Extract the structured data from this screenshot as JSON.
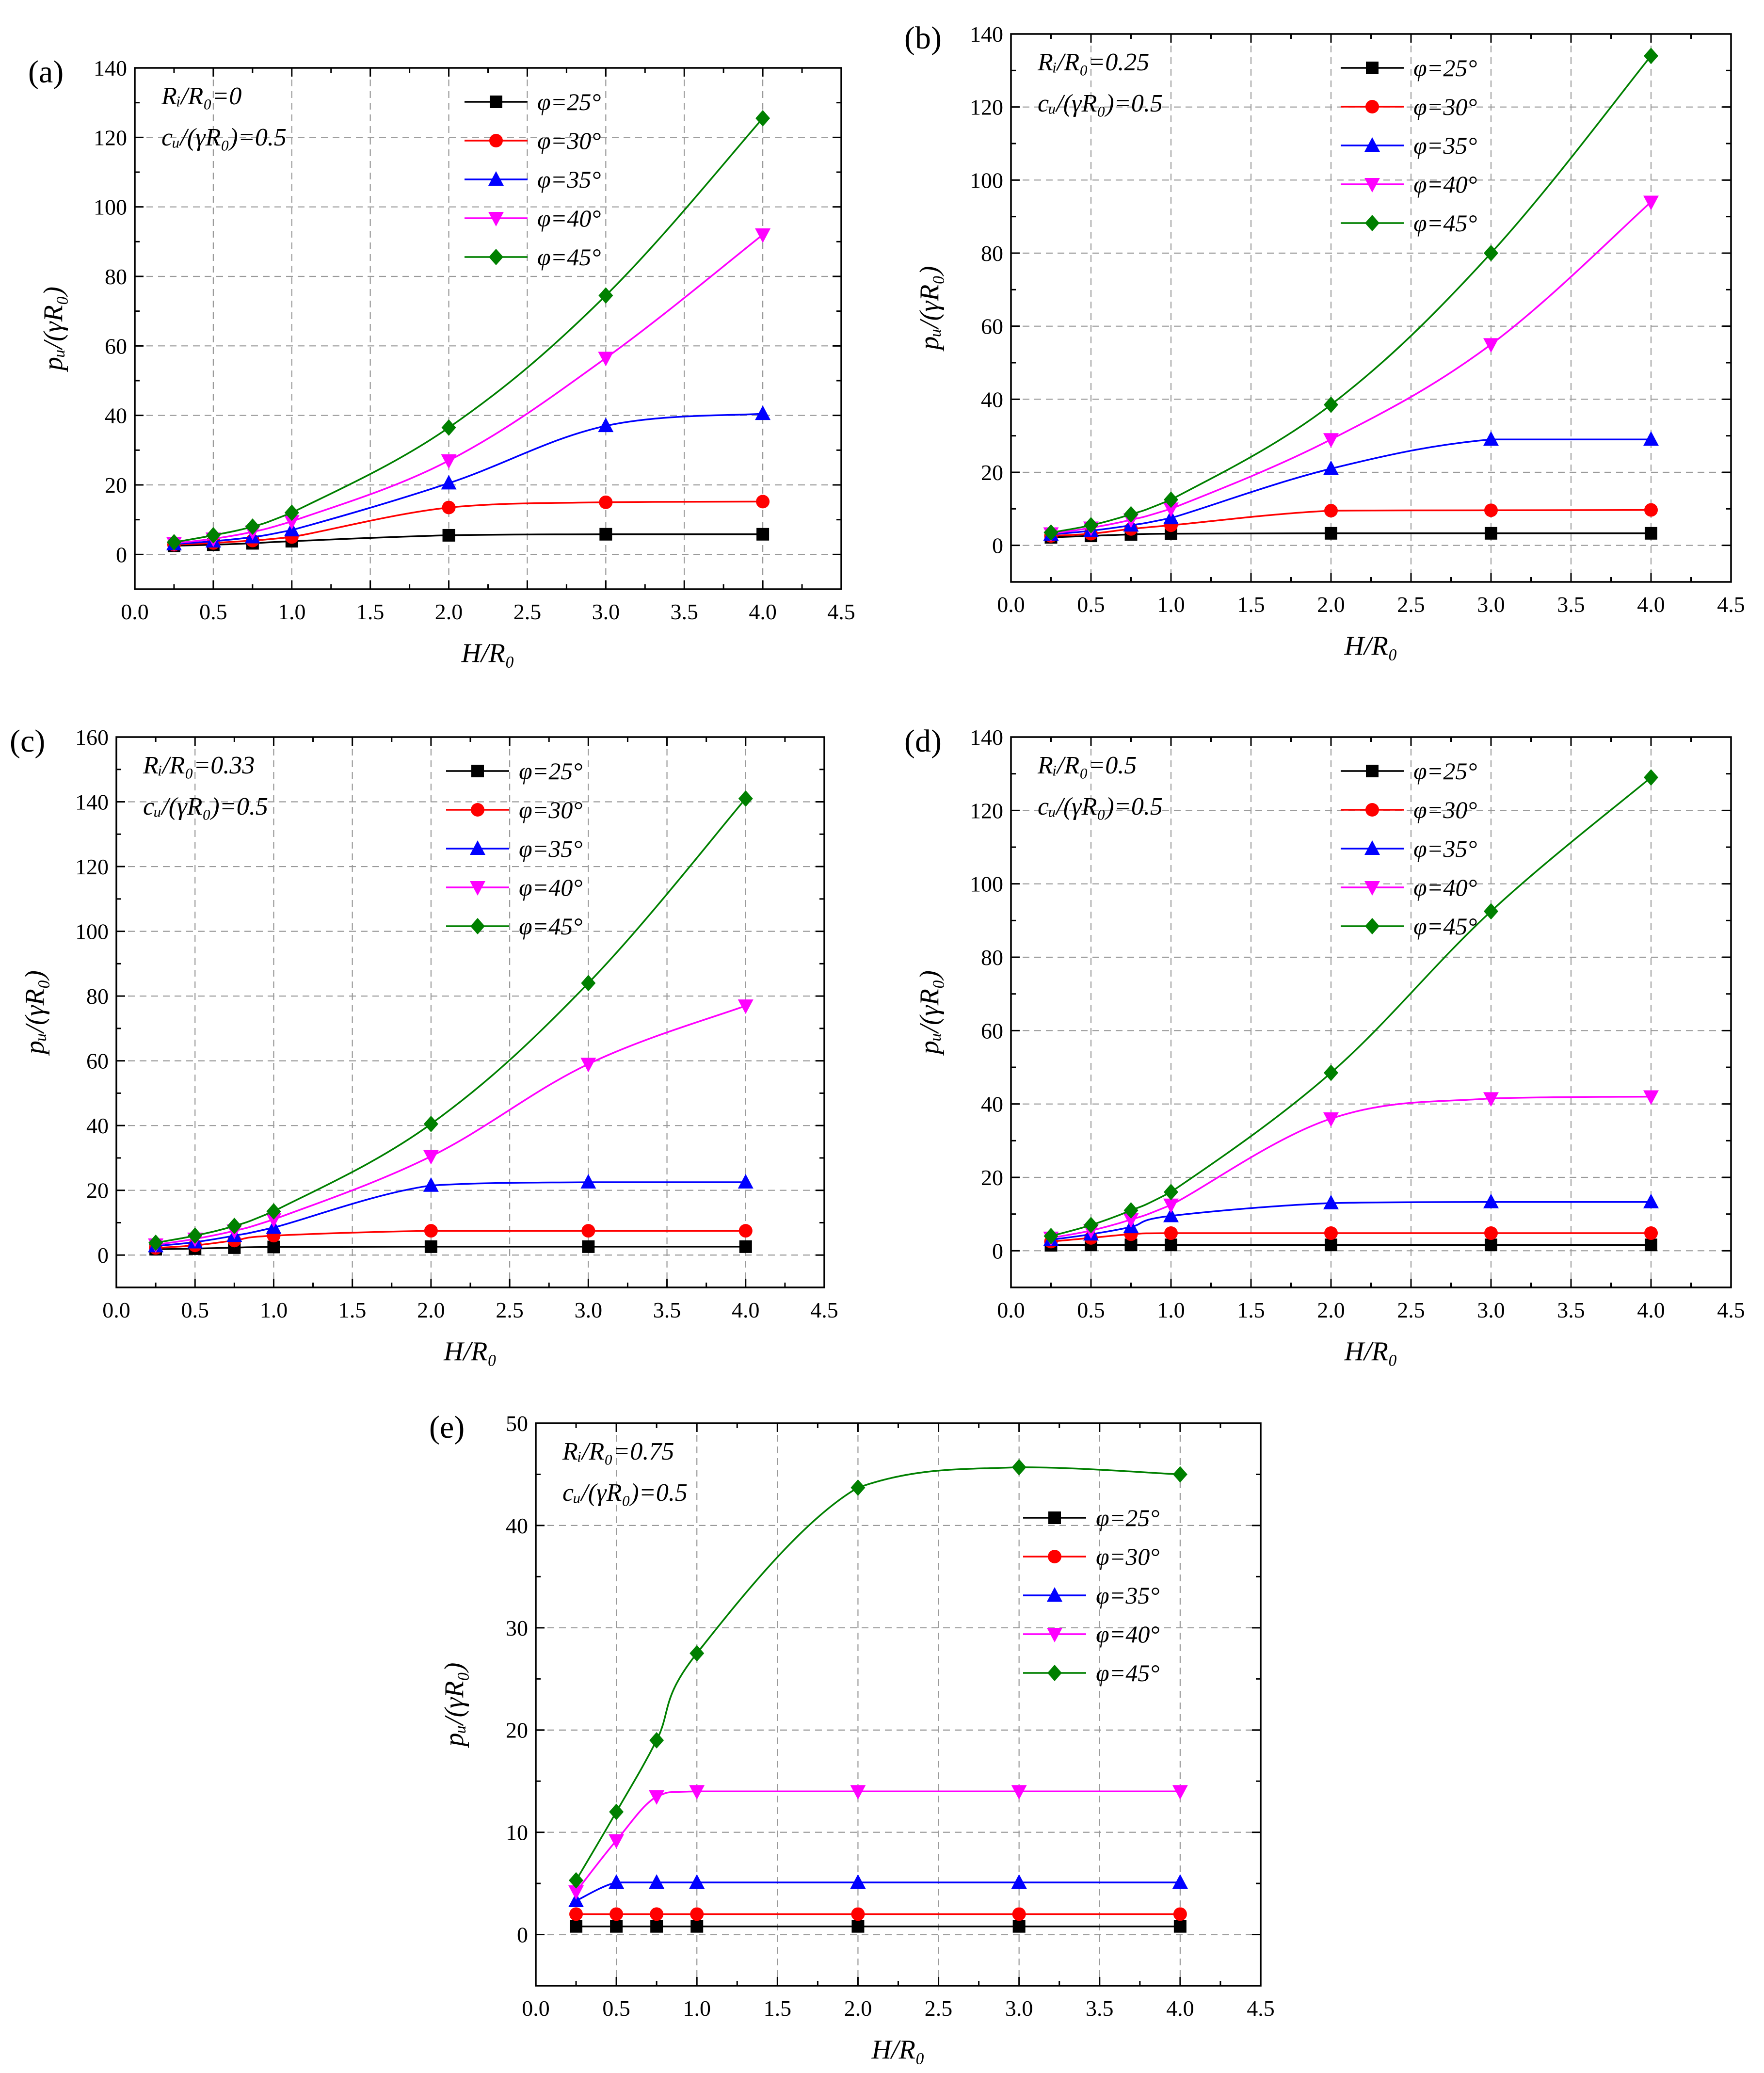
{
  "colors": {
    "phi25": "#000000",
    "phi30": "#ff0000",
    "phi35": "#0000ff",
    "phi40": "#ff00ff",
    "phi45": "#008000"
  },
  "chart_data": [
    {
      "type": "line",
      "panel_label": "(a)",
      "ann1": "Rᵢ/R₀=0",
      "ann2": "cᵤ/(γR₀)=0.5",
      "xlabel": "H/R₀",
      "ylabel": "pᵤ/(γR₀)",
      "xlim": [
        0,
        4.5
      ],
      "ylim": [
        -10,
        140
      ],
      "xticks": [
        "0.0",
        "0.5",
        "1.0",
        "1.5",
        "2.0",
        "2.5",
        "3.0",
        "3.5",
        "4.0",
        "4.5"
      ],
      "yticks": [
        "0",
        "20",
        "40",
        "60",
        "80",
        "100",
        "120",
        "140"
      ],
      "legend_position": "top-right",
      "x": [
        0.25,
        0.5,
        0.75,
        1.0,
        2.0,
        3.0,
        4.0
      ],
      "series": [
        {
          "name": "φ=25°",
          "marker": "square",
          "values": [
            2.5,
            2.8,
            3.2,
            3.8,
            5.5,
            5.8,
            5.8
          ]
        },
        {
          "name": "φ=30°",
          "marker": "circle",
          "values": [
            2.8,
            3.3,
            4.0,
            5.0,
            13.5,
            15.0,
            15.2
          ]
        },
        {
          "name": "φ=35°",
          "marker": "triangle-up",
          "values": [
            3.0,
            3.8,
            5.0,
            7.0,
            20.5,
            37.0,
            40.5
          ]
        },
        {
          "name": "φ=40°",
          "marker": "triangle-down",
          "values": [
            3.2,
            4.5,
            6.5,
            9.5,
            27.0,
            56.5,
            92.0
          ]
        },
        {
          "name": "φ=45°",
          "marker": "diamond",
          "values": [
            3.5,
            5.5,
            8.0,
            12.0,
            36.5,
            74.5,
            125.5
          ]
        }
      ]
    },
    {
      "type": "line",
      "panel_label": "(b)",
      "ann1": "Rᵢ/R₀=0.25",
      "ann2": "cᵤ/(γR₀)=0.5",
      "xlabel": "H/R₀",
      "ylabel": "pᵤ/(γR₀)",
      "xlim": [
        0,
        4.5
      ],
      "ylim": [
        -10,
        140
      ],
      "xticks": [
        "0.0",
        "0.5",
        "1.0",
        "1.5",
        "2.0",
        "2.5",
        "3.0",
        "3.5",
        "4.0",
        "4.5"
      ],
      "yticks": [
        "0",
        "20",
        "40",
        "60",
        "80",
        "100",
        "120",
        "140"
      ],
      "legend_position": "top-right",
      "x": [
        0.25,
        0.5,
        0.75,
        1.0,
        2.0,
        3.0,
        4.0
      ],
      "series": [
        {
          "name": "φ=25°",
          "marker": "square",
          "values": [
            2.2,
            2.6,
            3.0,
            3.2,
            3.3,
            3.3,
            3.3
          ]
        },
        {
          "name": "φ=30°",
          "marker": "circle",
          "values": [
            2.6,
            3.2,
            4.5,
            5.5,
            9.5,
            9.6,
            9.7
          ]
        },
        {
          "name": "φ=35°",
          "marker": "triangle-up",
          "values": [
            3.0,
            4.0,
            5.5,
            7.5,
            21.0,
            29.0,
            29.0
          ]
        },
        {
          "name": "φ=40°",
          "marker": "triangle-down",
          "values": [
            3.2,
            4.8,
            7.0,
            10.0,
            29.0,
            55.0,
            94.0
          ]
        },
        {
          "name": "φ=45°",
          "marker": "diamond",
          "values": [
            3.5,
            5.5,
            8.5,
            12.5,
            38.5,
            80.0,
            134.0
          ]
        }
      ]
    },
    {
      "type": "line",
      "panel_label": "(c)",
      "ann1": "Rᵢ/R₀=0.33",
      "ann2": "cᵤ/(γR₀)=0.5",
      "xlabel": "H/R₀",
      "ylabel": "pᵤ/(γR₀)",
      "xlim": [
        0,
        4.5
      ],
      "ylim": [
        -10,
        160
      ],
      "xticks": [
        "0.0",
        "0.5",
        "1.0",
        "1.5",
        "2.0",
        "2.5",
        "3.0",
        "3.5",
        "4.0",
        "4.5"
      ],
      "yticks": [
        "0",
        "20",
        "40",
        "60",
        "80",
        "100",
        "120",
        "140",
        "160"
      ],
      "legend_position": "top-right",
      "x": [
        0.25,
        0.5,
        0.75,
        1.0,
        2.0,
        3.0,
        4.0
      ],
      "series": [
        {
          "name": "φ=25°",
          "marker": "square",
          "values": [
            1.8,
            2.0,
            2.3,
            2.5,
            2.6,
            2.6,
            2.6
          ]
        },
        {
          "name": "φ=30°",
          "marker": "circle",
          "values": [
            2.2,
            3.0,
            4.5,
            6.0,
            7.5,
            7.5,
            7.5
          ]
        },
        {
          "name": "φ=35°",
          "marker": "triangle-up",
          "values": [
            2.8,
            4.0,
            6.0,
            8.5,
            21.5,
            22.5,
            22.5
          ]
        },
        {
          "name": "φ=40°",
          "marker": "triangle-down",
          "values": [
            3.2,
            5.0,
            7.5,
            11.0,
            30.5,
            59.0,
            77.0
          ]
        },
        {
          "name": "φ=45°",
          "marker": "diamond",
          "values": [
            3.8,
            6.0,
            9.0,
            13.5,
            40.5,
            84.0,
            141.0
          ]
        }
      ]
    },
    {
      "type": "line",
      "panel_label": "(d)",
      "ann1": "Rᵢ/R₀=0.5",
      "ann2": "cᵤ/(γR₀)=0.5",
      "xlabel": "H/R₀",
      "ylabel": "pᵤ/(γR₀)",
      "xlim": [
        0,
        4.5
      ],
      "ylim": [
        -10,
        140
      ],
      "xticks": [
        "0.0",
        "0.5",
        "1.0",
        "1.5",
        "2.0",
        "2.5",
        "3.0",
        "3.5",
        "4.0",
        "4.5"
      ],
      "yticks": [
        "0",
        "20",
        "40",
        "60",
        "80",
        "100",
        "120",
        "140"
      ],
      "legend_position": "top-right",
      "x": [
        0.25,
        0.5,
        0.75,
        1.0,
        2.0,
        3.0,
        4.0
      ],
      "series": [
        {
          "name": "φ=25°",
          "marker": "square",
          "values": [
            1.5,
            1.6,
            1.6,
            1.6,
            1.6,
            1.6,
            1.6
          ]
        },
        {
          "name": "φ=30°",
          "marker": "circle",
          "values": [
            2.5,
            3.5,
            4.5,
            4.8,
            4.8,
            4.8,
            4.8
          ]
        },
        {
          "name": "φ=35°",
          "marker": "triangle-up",
          "values": [
            3.0,
            4.5,
            6.5,
            9.5,
            13.0,
            13.3,
            13.3
          ]
        },
        {
          "name": "φ=40°",
          "marker": "triangle-down",
          "values": [
            3.5,
            5.5,
            8.5,
            12.5,
            36.0,
            41.5,
            42.0
          ]
        },
        {
          "name": "φ=45°",
          "marker": "diamond",
          "values": [
            4.0,
            7.0,
            11.0,
            16.0,
            48.5,
            92.5,
            129.0
          ]
        }
      ]
    },
    {
      "type": "line",
      "panel_label": "(e)",
      "ann1": "Rᵢ/R₀=0.75",
      "ann2": "cᵤ/(γR₀)=0.5",
      "xlabel": "H/R₀",
      "ylabel": "pᵤ/(γR₀)",
      "xlim": [
        0,
        4.5
      ],
      "ylim": [
        -5,
        50
      ],
      "xticks": [
        "0.0",
        "0.5",
        "1.0",
        "1.5",
        "2.0",
        "2.5",
        "3.0",
        "3.5",
        "4.0",
        "4.5"
      ],
      "yticks": [
        "0",
        "10",
        "20",
        "30",
        "40",
        "50"
      ],
      "legend_position": "right",
      "x": [
        0.25,
        0.5,
        0.75,
        1.0,
        2.0,
        3.0,
        4.0
      ],
      "series": [
        {
          "name": "φ=25°",
          "marker": "square",
          "values": [
            0.8,
            0.8,
            0.8,
            0.8,
            0.8,
            0.8,
            0.8
          ]
        },
        {
          "name": "φ=30°",
          "marker": "circle",
          "values": [
            2.0,
            2.0,
            2.0,
            2.0,
            2.0,
            2.0,
            2.0
          ]
        },
        {
          "name": "φ=35°",
          "marker": "triangle-up",
          "values": [
            3.3,
            5.1,
            5.1,
            5.1,
            5.1,
            5.1,
            5.1
          ]
        },
        {
          "name": "φ=40°",
          "marker": "triangle-down",
          "values": [
            4.2,
            9.2,
            13.5,
            14.0,
            14.0,
            14.0,
            14.0
          ]
        },
        {
          "name": "φ=45°",
          "marker": "diamond",
          "values": [
            5.3,
            12.0,
            19.0,
            27.5,
            43.7,
            45.7,
            45.0
          ]
        }
      ]
    }
  ]
}
